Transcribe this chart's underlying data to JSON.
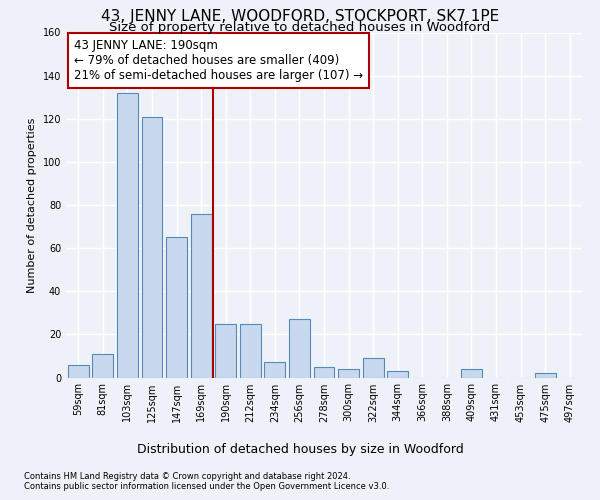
{
  "title": "43, JENNY LANE, WOODFORD, STOCKPORT, SK7 1PE",
  "subtitle": "Size of property relative to detached houses in Woodford",
  "xlabel": "Distribution of detached houses by size in Woodford",
  "ylabel": "Number of detached properties",
  "bar_labels": [
    "59sqm",
    "81sqm",
    "103sqm",
    "125sqm",
    "147sqm",
    "169sqm",
    "190sqm",
    "212sqm",
    "234sqm",
    "256sqm",
    "278sqm",
    "300sqm",
    "322sqm",
    "344sqm",
    "366sqm",
    "388sqm",
    "409sqm",
    "431sqm",
    "453sqm",
    "475sqm",
    "497sqm"
  ],
  "bar_values": [
    6,
    11,
    132,
    121,
    65,
    76,
    25,
    25,
    7,
    27,
    5,
    4,
    9,
    3,
    0,
    0,
    4,
    0,
    0,
    2,
    0
  ],
  "bar_color": "#c9d9ed",
  "bar_edge_color": "#5588bb",
  "annotation_text": "43 JENNY LANE: 190sqm\n← 79% of detached houses are smaller (409)\n21% of semi-detached houses are larger (107) →",
  "annotation_box_color": "white",
  "annotation_box_edge": "#aa0000",
  "vline_color": "#aa0000",
  "background_color": "#eef2f8",
  "grid_color": "white",
  "footer1": "Contains HM Land Registry data © Crown copyright and database right 2024.",
  "footer2": "Contains public sector information licensed under the Open Government Licence v3.0.",
  "ylim": [
    0,
    160
  ],
  "highlight_index": 6,
  "title_fontsize": 11,
  "subtitle_fontsize": 9.5,
  "xlabel_fontsize": 9,
  "ylabel_fontsize": 8,
  "footer_fontsize": 6,
  "annotation_fontsize": 8.5,
  "tick_fontsize": 7
}
